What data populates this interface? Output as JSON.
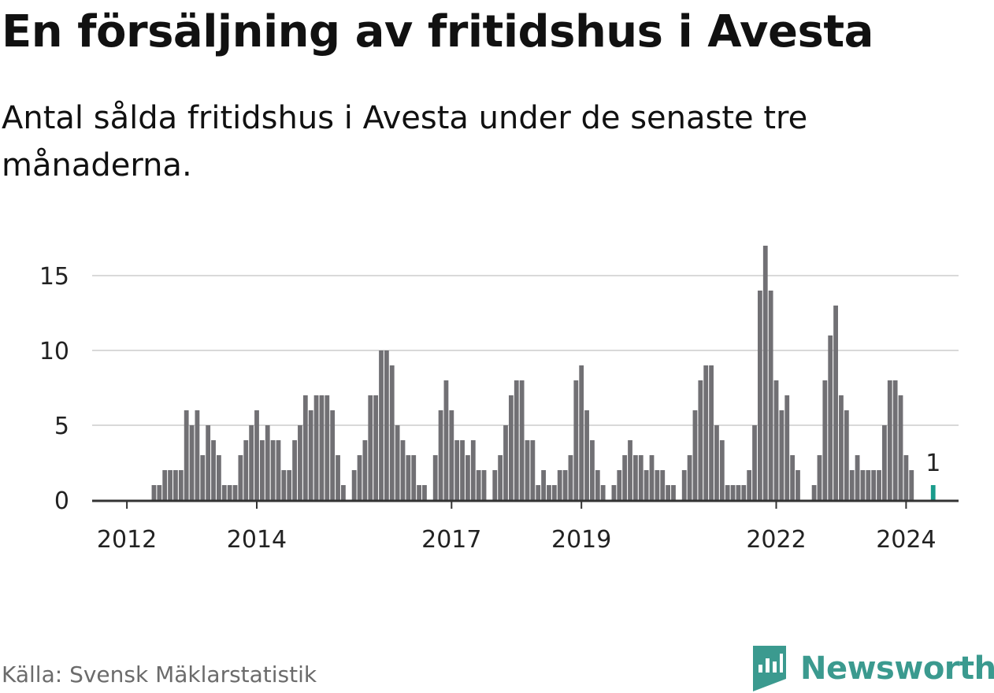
{
  "header": {
    "title": "En försäljning av fritidshus i Avesta",
    "subtitle": "Antal sålda fritidshus i Avesta under de senaste tre månaderna."
  },
  "footer": {
    "source": "Källa: Svensk Mäklarstatistik",
    "brand": "Newsworthy"
  },
  "colors": {
    "bar": "#717074",
    "highlight": "#1a9c8c",
    "grid": "#d9d9d9",
    "axis": "#333333",
    "brand": "#3b9a8f"
  },
  "chart_data": {
    "type": "bar",
    "title": "En försäljning av fritidshus i Avesta",
    "subtitle": "Antal sålda fritidshus i Avesta under de senaste tre månaderna.",
    "xlabel": "",
    "ylabel": "",
    "ylim": [
      0,
      17
    ],
    "yticks": [
      0,
      5,
      10,
      15
    ],
    "xticks": [
      "2012",
      "2014",
      "2017",
      "2019",
      "2022",
      "2024"
    ],
    "grid": true,
    "start": "2011-10",
    "end": "2024-01",
    "values": [
      0,
      0,
      0,
      0,
      0,
      0,
      0,
      0,
      1,
      1,
      2,
      2,
      2,
      2,
      6,
      5,
      6,
      3,
      5,
      4,
      3,
      1,
      1,
      1,
      3,
      4,
      5,
      6,
      4,
      5,
      4,
      4,
      2,
      2,
      4,
      5,
      7,
      6,
      7,
      7,
      7,
      6,
      3,
      1,
      0,
      2,
      3,
      4,
      7,
      7,
      10,
      10,
      9,
      5,
      4,
      3,
      3,
      1,
      1,
      0,
      3,
      6,
      8,
      6,
      4,
      4,
      3,
      4,
      2,
      2,
      0,
      2,
      3,
      5,
      7,
      8,
      8,
      4,
      4,
      1,
      2,
      1,
      1,
      2,
      2,
      3,
      8,
      9,
      6,
      4,
      2,
      1,
      0,
      1,
      2,
      3,
      4,
      3,
      3,
      2,
      3,
      2,
      2,
      1,
      1,
      0,
      2,
      3,
      6,
      8,
      9,
      9,
      5,
      4,
      1,
      1,
      1,
      1,
      2,
      5,
      14,
      17,
      14,
      8,
      6,
      7,
      3,
      2,
      0,
      0,
      1,
      3,
      8,
      11,
      13,
      7,
      6,
      2,
      3,
      2,
      2,
      2,
      2,
      5,
      8,
      8,
      7,
      3,
      2,
      0,
      0,
      0,
      1
    ],
    "highlight": {
      "label": "1",
      "value": 1,
      "period": "2024-01"
    },
    "source": "Källa: Svensk Mäklarstatistik"
  }
}
